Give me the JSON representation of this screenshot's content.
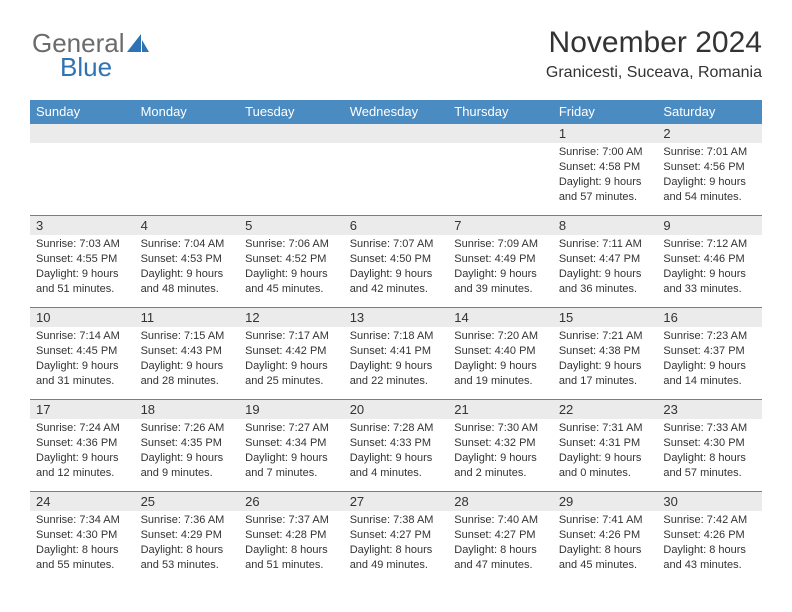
{
  "brand": {
    "part1": "General",
    "part2": "Blue"
  },
  "title": "November 2024",
  "subtitle": "Granicesti, Suceava, Romania",
  "colors": {
    "header_bg": "#4a8bc2",
    "header_text": "#ffffff",
    "row_divider": "#4a8bc2",
    "daynum_bg": "#ebebeb",
    "text": "#333333",
    "logo_gray": "#6b6b6b",
    "logo_blue": "#2e74b5",
    "page_bg": "#ffffff"
  },
  "typography": {
    "title_fontsize": 30,
    "subtitle_fontsize": 16,
    "header_fontsize": 13,
    "daynum_fontsize": 13,
    "cell_fontsize": 11
  },
  "weekdays": [
    "Sunday",
    "Monday",
    "Tuesday",
    "Wednesday",
    "Thursday",
    "Friday",
    "Saturday"
  ],
  "weeks": [
    [
      {
        "empty": true
      },
      {
        "empty": true
      },
      {
        "empty": true
      },
      {
        "empty": true
      },
      {
        "empty": true
      },
      {
        "n": "1",
        "sr": "Sunrise: 7:00 AM",
        "ss": "Sunset: 4:58 PM",
        "d1": "Daylight: 9 hours",
        "d2": "and 57 minutes."
      },
      {
        "n": "2",
        "sr": "Sunrise: 7:01 AM",
        "ss": "Sunset: 4:56 PM",
        "d1": "Daylight: 9 hours",
        "d2": "and 54 minutes."
      }
    ],
    [
      {
        "n": "3",
        "sr": "Sunrise: 7:03 AM",
        "ss": "Sunset: 4:55 PM",
        "d1": "Daylight: 9 hours",
        "d2": "and 51 minutes."
      },
      {
        "n": "4",
        "sr": "Sunrise: 7:04 AM",
        "ss": "Sunset: 4:53 PM",
        "d1": "Daylight: 9 hours",
        "d2": "and 48 minutes."
      },
      {
        "n": "5",
        "sr": "Sunrise: 7:06 AM",
        "ss": "Sunset: 4:52 PM",
        "d1": "Daylight: 9 hours",
        "d2": "and 45 minutes."
      },
      {
        "n": "6",
        "sr": "Sunrise: 7:07 AM",
        "ss": "Sunset: 4:50 PM",
        "d1": "Daylight: 9 hours",
        "d2": "and 42 minutes."
      },
      {
        "n": "7",
        "sr": "Sunrise: 7:09 AM",
        "ss": "Sunset: 4:49 PM",
        "d1": "Daylight: 9 hours",
        "d2": "and 39 minutes."
      },
      {
        "n": "8",
        "sr": "Sunrise: 7:11 AM",
        "ss": "Sunset: 4:47 PM",
        "d1": "Daylight: 9 hours",
        "d2": "and 36 minutes."
      },
      {
        "n": "9",
        "sr": "Sunrise: 7:12 AM",
        "ss": "Sunset: 4:46 PM",
        "d1": "Daylight: 9 hours",
        "d2": "and 33 minutes."
      }
    ],
    [
      {
        "n": "10",
        "sr": "Sunrise: 7:14 AM",
        "ss": "Sunset: 4:45 PM",
        "d1": "Daylight: 9 hours",
        "d2": "and 31 minutes."
      },
      {
        "n": "11",
        "sr": "Sunrise: 7:15 AM",
        "ss": "Sunset: 4:43 PM",
        "d1": "Daylight: 9 hours",
        "d2": "and 28 minutes."
      },
      {
        "n": "12",
        "sr": "Sunrise: 7:17 AM",
        "ss": "Sunset: 4:42 PM",
        "d1": "Daylight: 9 hours",
        "d2": "and 25 minutes."
      },
      {
        "n": "13",
        "sr": "Sunrise: 7:18 AM",
        "ss": "Sunset: 4:41 PM",
        "d1": "Daylight: 9 hours",
        "d2": "and 22 minutes."
      },
      {
        "n": "14",
        "sr": "Sunrise: 7:20 AM",
        "ss": "Sunset: 4:40 PM",
        "d1": "Daylight: 9 hours",
        "d2": "and 19 minutes."
      },
      {
        "n": "15",
        "sr": "Sunrise: 7:21 AM",
        "ss": "Sunset: 4:38 PM",
        "d1": "Daylight: 9 hours",
        "d2": "and 17 minutes."
      },
      {
        "n": "16",
        "sr": "Sunrise: 7:23 AM",
        "ss": "Sunset: 4:37 PM",
        "d1": "Daylight: 9 hours",
        "d2": "and 14 minutes."
      }
    ],
    [
      {
        "n": "17",
        "sr": "Sunrise: 7:24 AM",
        "ss": "Sunset: 4:36 PM",
        "d1": "Daylight: 9 hours",
        "d2": "and 12 minutes."
      },
      {
        "n": "18",
        "sr": "Sunrise: 7:26 AM",
        "ss": "Sunset: 4:35 PM",
        "d1": "Daylight: 9 hours",
        "d2": "and 9 minutes."
      },
      {
        "n": "19",
        "sr": "Sunrise: 7:27 AM",
        "ss": "Sunset: 4:34 PM",
        "d1": "Daylight: 9 hours",
        "d2": "and 7 minutes."
      },
      {
        "n": "20",
        "sr": "Sunrise: 7:28 AM",
        "ss": "Sunset: 4:33 PM",
        "d1": "Daylight: 9 hours",
        "d2": "and 4 minutes."
      },
      {
        "n": "21",
        "sr": "Sunrise: 7:30 AM",
        "ss": "Sunset: 4:32 PM",
        "d1": "Daylight: 9 hours",
        "d2": "and 2 minutes."
      },
      {
        "n": "22",
        "sr": "Sunrise: 7:31 AM",
        "ss": "Sunset: 4:31 PM",
        "d1": "Daylight: 9 hours",
        "d2": "and 0 minutes."
      },
      {
        "n": "23",
        "sr": "Sunrise: 7:33 AM",
        "ss": "Sunset: 4:30 PM",
        "d1": "Daylight: 8 hours",
        "d2": "and 57 minutes."
      }
    ],
    [
      {
        "n": "24",
        "sr": "Sunrise: 7:34 AM",
        "ss": "Sunset: 4:30 PM",
        "d1": "Daylight: 8 hours",
        "d2": "and 55 minutes."
      },
      {
        "n": "25",
        "sr": "Sunrise: 7:36 AM",
        "ss": "Sunset: 4:29 PM",
        "d1": "Daylight: 8 hours",
        "d2": "and 53 minutes."
      },
      {
        "n": "26",
        "sr": "Sunrise: 7:37 AM",
        "ss": "Sunset: 4:28 PM",
        "d1": "Daylight: 8 hours",
        "d2": "and 51 minutes."
      },
      {
        "n": "27",
        "sr": "Sunrise: 7:38 AM",
        "ss": "Sunset: 4:27 PM",
        "d1": "Daylight: 8 hours",
        "d2": "and 49 minutes."
      },
      {
        "n": "28",
        "sr": "Sunrise: 7:40 AM",
        "ss": "Sunset: 4:27 PM",
        "d1": "Daylight: 8 hours",
        "d2": "and 47 minutes."
      },
      {
        "n": "29",
        "sr": "Sunrise: 7:41 AM",
        "ss": "Sunset: 4:26 PM",
        "d1": "Daylight: 8 hours",
        "d2": "and 45 minutes."
      },
      {
        "n": "30",
        "sr": "Sunrise: 7:42 AM",
        "ss": "Sunset: 4:26 PM",
        "d1": "Daylight: 8 hours",
        "d2": "and 43 minutes."
      }
    ]
  ]
}
